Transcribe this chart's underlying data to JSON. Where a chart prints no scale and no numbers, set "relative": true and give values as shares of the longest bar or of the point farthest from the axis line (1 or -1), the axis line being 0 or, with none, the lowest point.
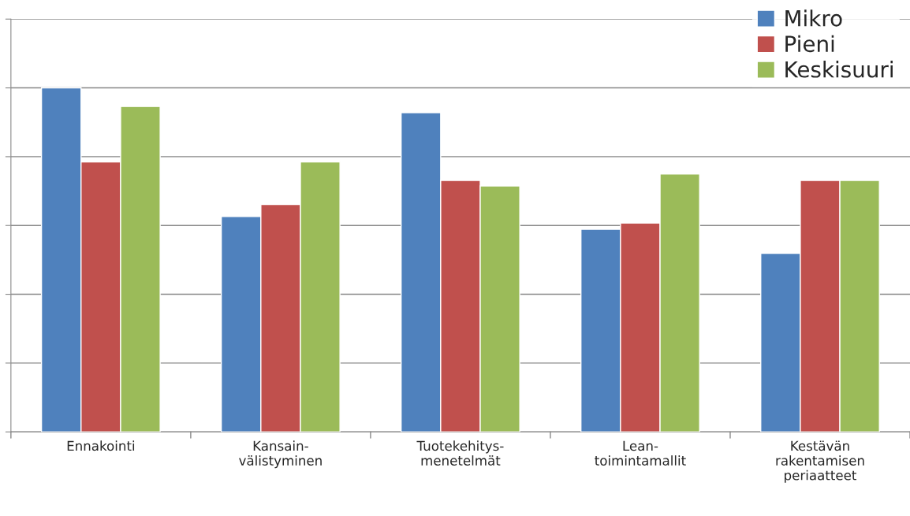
{
  "chart_data": {
    "type": "bar",
    "relative": true,
    "grid": "y",
    "legend": "top right",
    "categories": [
      "Ennakointi",
      "Kansain-\nvälistyminen",
      "Tuotekehitys-\nmenetelmät",
      "Lean-\ntoimintamallit",
      "Kestävän\nrakentamisen\nperiaatteet"
    ],
    "series": [
      {
        "name": "Mikro",
        "color": "#4f81bd",
        "values": [
          1,
          0.626,
          0.928,
          0.589,
          0.519
        ]
      },
      {
        "name": "Pieni",
        "color": "#c0504d",
        "values": [
          0.785,
          0.661,
          0.731,
          0.607,
          0.731
        ]
      },
      {
        "name": "Keskisuuri",
        "color": "#9bbb59",
        "values": [
          0.946,
          0.785,
          0.715,
          0.75,
          0.731
        ]
      }
    ]
  }
}
